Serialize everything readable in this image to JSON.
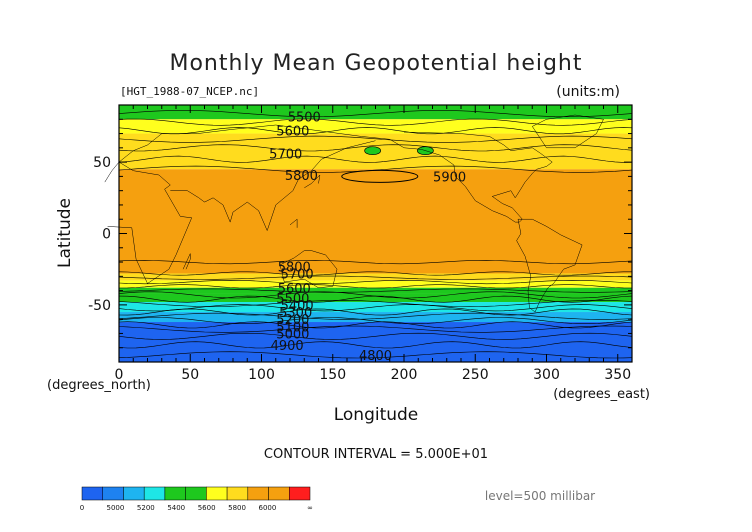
{
  "chart_data": {
    "type": "heatmap",
    "title": "Monthly Mean Geopotential height",
    "subtitle_left": "[HGT_1988-07_NCEP.nc]",
    "units": "(units:m)",
    "xlabel": "Longitude",
    "ylabel": "Latitude",
    "xunit": "(degrees_east)",
    "yunit": "(degrees_north)",
    "xlim": [
      0,
      360
    ],
    "ylim": [
      -90,
      90
    ],
    "xticks": [
      0,
      50,
      100,
      150,
      200,
      250,
      300,
      350
    ],
    "yticks": [
      50,
      0,
      -50
    ],
    "contour_interval_text": "CONTOUR INTERVAL = 5.000E+01",
    "level_text": "level=500 millibar",
    "bands": [
      {
        "lat_top": 90,
        "lat_bottom": 80,
        "color": "#1ec81e",
        "range": "5400-5600"
      },
      {
        "lat_top": 80,
        "lat_bottom": 70,
        "color": "#ffff1e",
        "range": "5600-5700"
      },
      {
        "lat_top": 70,
        "lat_bottom": 45,
        "color": "#ffdc1e",
        "range": "5700-5800"
      },
      {
        "lat_top": 45,
        "lat_bottom": -28,
        "color": "#f5a00f",
        "range": "5800-6000"
      },
      {
        "lat_top": -28,
        "lat_bottom": -33,
        "color": "#ffdc1e",
        "range": "5700-5800"
      },
      {
        "lat_top": -33,
        "lat_bottom": -38,
        "color": "#ffff1e",
        "range": "5600-5700"
      },
      {
        "lat_top": -38,
        "lat_bottom": -42,
        "color": "#1ec81e",
        "range": "5500-5600"
      },
      {
        "lat_top": -42,
        "lat_bottom": -48,
        "color": "#1ec81e",
        "range": "5400-5500"
      },
      {
        "lat_top": -48,
        "lat_bottom": -55,
        "color": "#1ee6e6",
        "range": "5300-5400"
      },
      {
        "lat_top": -55,
        "lat_bottom": -62,
        "color": "#1eb4f0",
        "range": "5100-5300"
      },
      {
        "lat_top": -62,
        "lat_bottom": -90,
        "color": "#1e64f0",
        "range": "4800-5100"
      }
    ],
    "contour_labels": [
      {
        "text": "5500",
        "lon": 130,
        "lat": 82
      },
      {
        "text": "5600",
        "lon": 122,
        "lat": 72
      },
      {
        "text": "5700",
        "lon": 117,
        "lat": 56
      },
      {
        "text": "5800",
        "lon": 128,
        "lat": 41
      },
      {
        "text": "5900",
        "lon": 232,
        "lat": 40
      },
      {
        "text": "5800",
        "lon": 123,
        "lat": -23
      },
      {
        "text": "5700",
        "lon": 125,
        "lat": -28
      },
      {
        "text": "5600",
        "lon": 123,
        "lat": -38
      },
      {
        "text": "5500",
        "lon": 122,
        "lat": -45
      },
      {
        "text": "5400",
        "lon": 125,
        "lat": -50
      },
      {
        "text": "5300",
        "lon": 124,
        "lat": -55
      },
      {
        "text": "5200",
        "lon": 122,
        "lat": -60
      },
      {
        "text": "5100",
        "lon": 122,
        "lat": -65
      },
      {
        "text": "5000",
        "lon": 122,
        "lat": -70
      },
      {
        "text": "4900",
        "lon": 118,
        "lat": -78
      },
      {
        "text": "4800",
        "lon": 180,
        "lat": -85
      }
    ],
    "colorbar": {
      "colors": [
        "#1e64f0",
        "#1e82f0",
        "#1eb4f0",
        "#1ee6e6",
        "#1ec81e",
        "#1ec81e",
        "#ffff1e",
        "#ffdc1e",
        "#f5a00f",
        "#f5a00f",
        "#ff1e1e"
      ],
      "labels": [
        "0",
        "5000",
        "5200",
        "5400",
        "5600",
        "5800",
        "6000",
        "∞"
      ]
    }
  }
}
